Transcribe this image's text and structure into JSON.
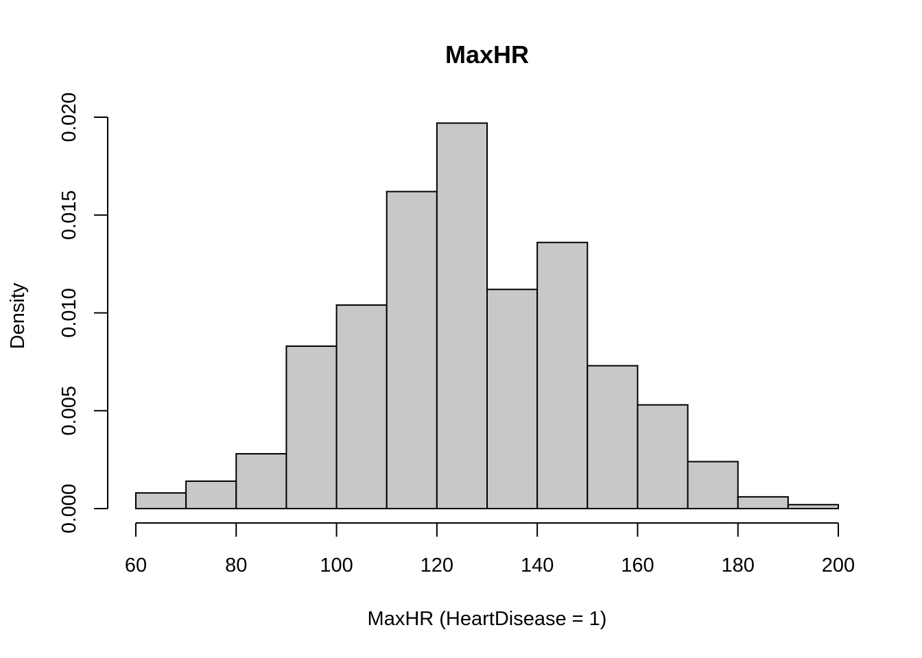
{
  "chart_data": {
    "type": "bar",
    "title": "MaxHR",
    "xlabel": "MaxHR (HeartDisease = 1)",
    "ylabel": "Density",
    "bin_edges": [
      60,
      70,
      80,
      90,
      100,
      110,
      120,
      130,
      140,
      150,
      160,
      170,
      180,
      190,
      200
    ],
    "values": [
      0.0008,
      0.0014,
      0.0028,
      0.0083,
      0.0104,
      0.0162,
      0.0197,
      0.0112,
      0.0136,
      0.0073,
      0.0053,
      0.0024,
      0.0006,
      0.0002
    ],
    "xlim": [
      60,
      200
    ],
    "ylim": [
      0,
      0.02
    ],
    "x_ticks": [
      60,
      80,
      100,
      120,
      140,
      160,
      180,
      200
    ],
    "x_tick_labels": [
      "60",
      "80",
      "100",
      "120",
      "140",
      "160",
      "180",
      "200"
    ],
    "y_ticks": [
      0,
      0.005,
      0.01,
      0.015,
      0.02
    ],
    "y_tick_labels": [
      "0.000",
      "0.005",
      "0.010",
      "0.015",
      "0.020"
    ],
    "grid": false,
    "bar_color": "#c8c8c8",
    "edge_color": "#000000"
  }
}
